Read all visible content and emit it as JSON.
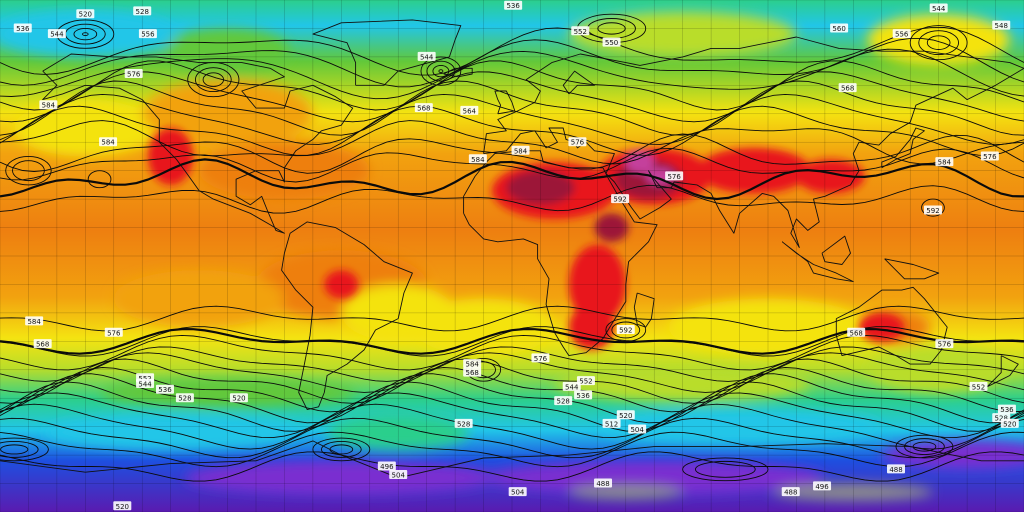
{
  "map": {
    "kind": "global geopotential height contours over temperature field",
    "colors": {
      "violet_dark": "#5a1bb0",
      "purple": "#7a2fd0",
      "blue": "#1e4fe0",
      "cyan": "#21c6e8",
      "teal": "#2ccf8c",
      "green": "#62c83a",
      "yellow_green": "#b9dd2a",
      "yellow": "#f4e311",
      "orange": "#f2a20f",
      "orange_deep": "#ee7f10",
      "red": "#e8131f",
      "maroon": "#9c1238",
      "magenta": "#c4419c",
      "grey": "#8c8c8c"
    },
    "contour_labels": [
      {
        "text": "536",
        "lon": 0.4,
        "lat": 88
      },
      {
        "text": "544",
        "lon": 150,
        "lat": 87
      },
      {
        "text": "528",
        "lon": -130,
        "lat": 86
      },
      {
        "text": "520",
        "lon": -150,
        "lat": 85
      },
      {
        "text": "536",
        "lon": -172,
        "lat": 80
      },
      {
        "text": "544",
        "lon": -160,
        "lat": 78
      },
      {
        "text": "556",
        "lon": -128,
        "lat": 78
      },
      {
        "text": "552",
        "lon": 24,
        "lat": 79
      },
      {
        "text": "550",
        "lon": 35,
        "lat": 75
      },
      {
        "text": "544",
        "lon": -30,
        "lat": 70
      },
      {
        "text": "560",
        "lon": 115,
        "lat": 80
      },
      {
        "text": "556",
        "lon": 137,
        "lat": 78
      },
      {
        "text": "548",
        "lon": 172,
        "lat": 81
      },
      {
        "text": "568",
        "lon": 118,
        "lat": 59
      },
      {
        "text": "576",
        "lon": -133,
        "lat": 64
      },
      {
        "text": "584",
        "lon": -163,
        "lat": 53
      },
      {
        "text": "568",
        "lon": -31,
        "lat": 52
      },
      {
        "text": "564",
        "lon": -15,
        "lat": 51
      },
      {
        "text": "584",
        "lon": -142,
        "lat": 40
      },
      {
        "text": "584",
        "lon": -12,
        "lat": 34
      },
      {
        "text": "584",
        "lon": 3,
        "lat": 37
      },
      {
        "text": "576",
        "lon": 23,
        "lat": 40
      },
      {
        "text": "576",
        "lon": 57,
        "lat": 28
      },
      {
        "text": "584",
        "lon": 152,
        "lat": 33
      },
      {
        "text": "576",
        "lon": 168,
        "lat": 35
      },
      {
        "text": "592",
        "lon": 148,
        "lat": 16
      },
      {
        "text": "592",
        "lon": 38,
        "lat": 20
      },
      {
        "text": "592",
        "lon": 40,
        "lat": -26
      },
      {
        "text": "584",
        "lon": -168,
        "lat": -23
      },
      {
        "text": "576",
        "lon": -140,
        "lat": -27
      },
      {
        "text": "568",
        "lon": -165,
        "lat": -31
      },
      {
        "text": "568",
        "lon": 121,
        "lat": -27
      },
      {
        "text": "576",
        "lon": 152,
        "lat": -31
      },
      {
        "text": "576",
        "lon": 10,
        "lat": -36
      },
      {
        "text": "568",
        "lon": -14,
        "lat": -41
      },
      {
        "text": "584",
        "lon": -14,
        "lat": -38
      },
      {
        "text": "552",
        "lon": -129,
        "lat": -43
      },
      {
        "text": "544",
        "lon": -129,
        "lat": -45
      },
      {
        "text": "536",
        "lon": -122,
        "lat": -47
      },
      {
        "text": "528",
        "lon": -115,
        "lat": -50
      },
      {
        "text": "520",
        "lon": -96,
        "lat": -50
      },
      {
        "text": "552",
        "lon": 26,
        "lat": -44
      },
      {
        "text": "544",
        "lon": 21,
        "lat": -46
      },
      {
        "text": "536",
        "lon": 25,
        "lat": -49
      },
      {
        "text": "528",
        "lon": 18,
        "lat": -51
      },
      {
        "text": "520",
        "lon": 40,
        "lat": -56
      },
      {
        "text": "512",
        "lon": 35,
        "lat": -59
      },
      {
        "text": "504",
        "lon": 44,
        "lat": -61
      },
      {
        "text": "528",
        "lon": -17,
        "lat": -59
      },
      {
        "text": "552",
        "lon": 164,
        "lat": -46
      },
      {
        "text": "536",
        "lon": 174,
        "lat": -54
      },
      {
        "text": "528",
        "lon": 172,
        "lat": -57
      },
      {
        "text": "520",
        "lon": 175,
        "lat": -59
      },
      {
        "text": "496",
        "lon": -44,
        "lat": -74
      },
      {
        "text": "504",
        "lon": -40,
        "lat": -77
      },
      {
        "text": "488",
        "lon": 135,
        "lat": -75
      },
      {
        "text": "496",
        "lon": 109,
        "lat": -81
      },
      {
        "text": "488",
        "lon": 98,
        "lat": -83
      },
      {
        "text": "504",
        "lon": 2,
        "lat": -83
      },
      {
        "text": "488",
        "lon": 32,
        "lat": -80
      },
      {
        "text": "520",
        "lon": -137,
        "lat": -88
      }
    ]
  }
}
